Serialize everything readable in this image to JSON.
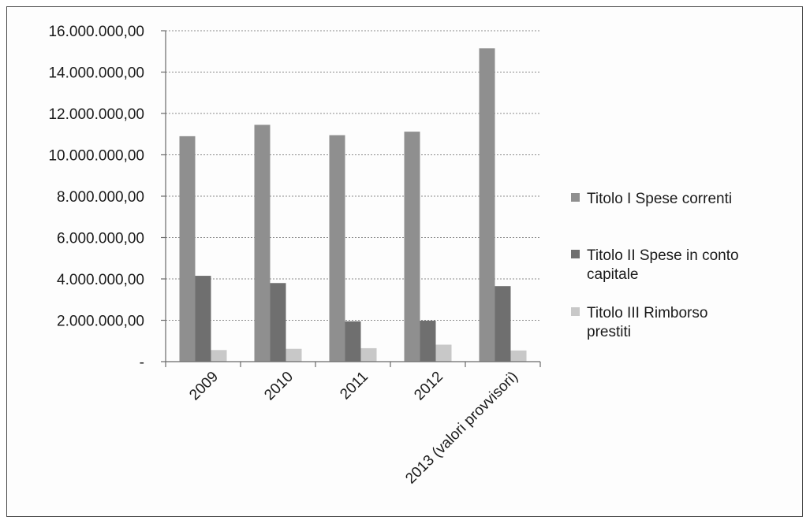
{
  "chart_data": {
    "type": "bar",
    "categories": [
      "2009",
      "2010",
      "2011",
      "2012",
      "2013 (valori provvisori)"
    ],
    "series": [
      {
        "name": "Titolo I Spese correnti",
        "values": [
          10900000,
          11450000,
          10950000,
          11120000,
          15150000
        ],
        "color": "#8f8f8f"
      },
      {
        "name": "Titolo II Spese in conto capitale",
        "values": [
          4150000,
          3800000,
          1950000,
          1980000,
          3650000
        ],
        "color": "#6f6f6f"
      },
      {
        "name": "Titolo III Rimborso prestiti",
        "values": [
          560000,
          620000,
          650000,
          820000,
          540000
        ],
        "color": "#c8c8c8"
      }
    ],
    "yticks": [
      0,
      2000000,
      4000000,
      6000000,
      8000000,
      10000000,
      12000000,
      14000000,
      16000000
    ],
    "ytick_labels": [
      "-",
      "2.000.000,00",
      "4.000.000,00",
      "6.000.000,00",
      "8.000.000,00",
      "10.000.000,00",
      "12.000.000,00",
      "14.000.000,00",
      "16.000.000,00"
    ],
    "ylim": [
      0,
      16000000
    ],
    "grid": true,
    "legend_position": "right"
  }
}
